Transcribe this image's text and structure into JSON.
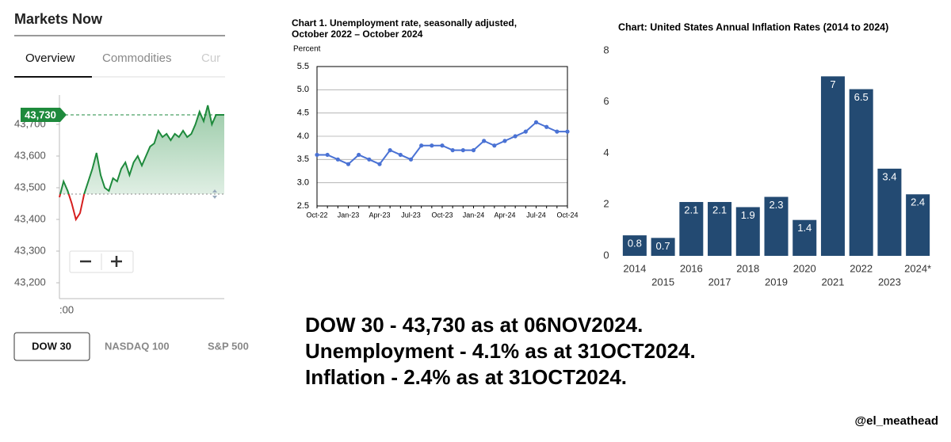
{
  "chart_data": [
    {
      "type": "line",
      "title": "Markets Now",
      "tabs": [
        "Overview",
        "Commodities",
        "Cur"
      ],
      "indices": [
        "DOW 30",
        "NASDAQ 100",
        "S&P 500"
      ],
      "categories": [
        ":00",
        null,
        null,
        null,
        null,
        null,
        null,
        null,
        null,
        null,
        null,
        null,
        null,
        null,
        null,
        null,
        null,
        null,
        null,
        null,
        null,
        null,
        null,
        null,
        null,
        null,
        null,
        null,
        null,
        null,
        null,
        null,
        null,
        null,
        null,
        null,
        null,
        null,
        null,
        null,
        null
      ],
      "values": [
        43470,
        43520,
        43490,
        43450,
        43400,
        43420,
        43480,
        43520,
        43560,
        43610,
        43540,
        43500,
        43490,
        43530,
        43520,
        43560,
        43580,
        43540,
        43580,
        43600,
        43570,
        43600,
        43630,
        43640,
        43680,
        43660,
        43670,
        43650,
        43670,
        43660,
        43680,
        43660,
        43670,
        43700,
        43740,
        43710,
        43760,
        43700,
        43730,
        43730,
        43730
      ],
      "color": "#1e8a3c",
      "below_color": "#d61f1f",
      "reference": 43480,
      "current": {
        "value": 43730,
        "label": "43,730"
      },
      "ylim": [
        43150,
        43780
      ],
      "yticks": [
        {
          "value": 43200,
          "label": "43,200"
        },
        {
          "value": 43300,
          "label": "43,300"
        },
        {
          "value": 43400,
          "label": "43,400"
        },
        {
          "value": 43500,
          "label": "43,500"
        },
        {
          "value": 43600,
          "label": "43,600"
        },
        {
          "value": 43700,
          "label": "43,700"
        }
      ]
    },
    {
      "type": "line",
      "title": [
        "Chart 1. Unemployment rate, seasonally adjusted,",
        "October 2022 – October 2024"
      ],
      "y_label": "Percent",
      "categories": [
        "Oct-22",
        null,
        null,
        "Jan-23",
        null,
        null,
        "Apr-23",
        null,
        null,
        "Jul-23",
        null,
        null,
        "Oct-23",
        null,
        null,
        "Jan-24",
        null,
        null,
        "Apr-24",
        null,
        null,
        "Jul-24",
        null,
        null,
        "Oct-24"
      ],
      "values": [
        3.6,
        3.6,
        3.5,
        3.4,
        3.6,
        3.5,
        3.4,
        3.7,
        3.6,
        3.5,
        3.8,
        3.8,
        3.8,
        3.7,
        3.7,
        3.7,
        3.9,
        3.8,
        3.9,
        4.0,
        4.1,
        4.3,
        4.2,
        4.1,
        4.1
      ],
      "color": "#4a72d4",
      "ylim": [
        2.5,
        5.5
      ],
      "yticks": [
        2.5,
        {
          "value": 3,
          "label": "3.0"
        },
        3.5,
        {
          "value": 4,
          "label": "4.0"
        },
        4.5,
        {
          "value": 5,
          "label": "5.0"
        },
        5.5
      ],
      "grid": true
    },
    {
      "type": "bar",
      "title": "Chart: United States Annual Inflation Rates (2014 to 2024)",
      "categories": [
        "2014",
        "2015",
        "2016",
        "2017",
        "2018",
        "2019",
        "2020",
        "2021",
        "2022",
        "2023",
        "2024*"
      ],
      "values": [
        0.8,
        0.7,
        2.1,
        2.1,
        1.9,
        2.3,
        1.4,
        7,
        6.5,
        3.4,
        2.4
      ],
      "color": "#234a72",
      "ylim": [
        0,
        8
      ],
      "yticks": [
        0,
        2,
        4,
        6,
        8
      ]
    }
  ],
  "caption": {
    "lines": [
      "DOW 30 - 43,730 as at 06NOV2024.",
      "Unemployment - 4.1% as at  31OCT2024.",
      "Inflation - 2.4% as at 31OCT2024."
    ],
    "handle": "@el_meathead"
  }
}
